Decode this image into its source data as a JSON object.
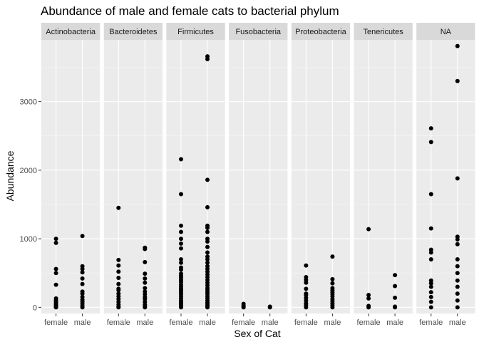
{
  "chart_data": {
    "type": "scatter",
    "title": "Abundance of male and female cats to bacterial phylum",
    "xlabel": "Sex of Cat",
    "ylabel": "Abundance",
    "ylim": [
      -90,
      3900
    ],
    "yticks": [
      0,
      1000,
      2000,
      3000
    ],
    "x_categories": [
      "female",
      "male"
    ],
    "grid": "on",
    "facets": [
      {
        "label": "Actinobacteria",
        "female": [
          1000,
          940,
          560,
          500,
          330,
          130,
          100,
          80,
          60,
          40,
          20,
          10,
          5,
          0
        ],
        "male": [
          1040,
          600,
          560,
          510,
          420,
          340,
          230,
          200,
          150,
          110,
          80,
          50,
          20,
          0
        ]
      },
      {
        "label": "Bacteroidetes",
        "female": [
          1450,
          690,
          610,
          520,
          430,
          340,
          270,
          250,
          200,
          160,
          120,
          80,
          40,
          10,
          0
        ],
        "male": [
          870,
          850,
          660,
          490,
          420,
          360,
          280,
          230,
          190,
          150,
          120,
          80,
          40,
          10,
          0
        ]
      },
      {
        "label": "Firmicutes",
        "female": [
          2160,
          1650,
          1190,
          1100,
          1000,
          930,
          860,
          700,
          650,
          580,
          550,
          490,
          460,
          430,
          400,
          370,
          330,
          300,
          270,
          250,
          220,
          190,
          160,
          130,
          100,
          80,
          60,
          40,
          20,
          0
        ],
        "male": [
          3660,
          3620,
          1860,
          1460,
          1190,
          1160,
          1100,
          1000,
          960,
          880,
          800,
          740,
          700,
          650,
          600,
          560,
          520,
          480,
          440,
          400,
          360,
          320,
          280,
          250,
          220,
          190,
          160,
          130,
          100,
          70,
          50,
          30,
          10,
          0
        ]
      },
      {
        "label": "Fusobacteria",
        "female": [
          50,
          30,
          10,
          0
        ],
        "male": [
          10,
          0
        ]
      },
      {
        "label": "Proteobacteria",
        "female": [
          610,
          440,
          400,
          360,
          270,
          200,
          180,
          140,
          100,
          60,
          30,
          0
        ],
        "male": [
          740,
          410,
          350,
          280,
          250,
          220,
          190,
          160,
          120,
          90,
          60,
          30,
          0
        ]
      },
      {
        "label": "Tenericutes",
        "female": [
          1140,
          180,
          130,
          20,
          0
        ],
        "male": [
          470,
          310,
          140,
          10,
          0
        ]
      },
      {
        "label": "NA",
        "female": [
          2610,
          2410,
          1650,
          1150,
          840,
          800,
          700,
          390,
          350,
          300,
          220,
          150,
          80,
          0
        ],
        "male": [
          3810,
          3300,
          1880,
          1030,
          990,
          920,
          700,
          600,
          500,
          390,
          300,
          200,
          100,
          0
        ]
      }
    ]
  }
}
